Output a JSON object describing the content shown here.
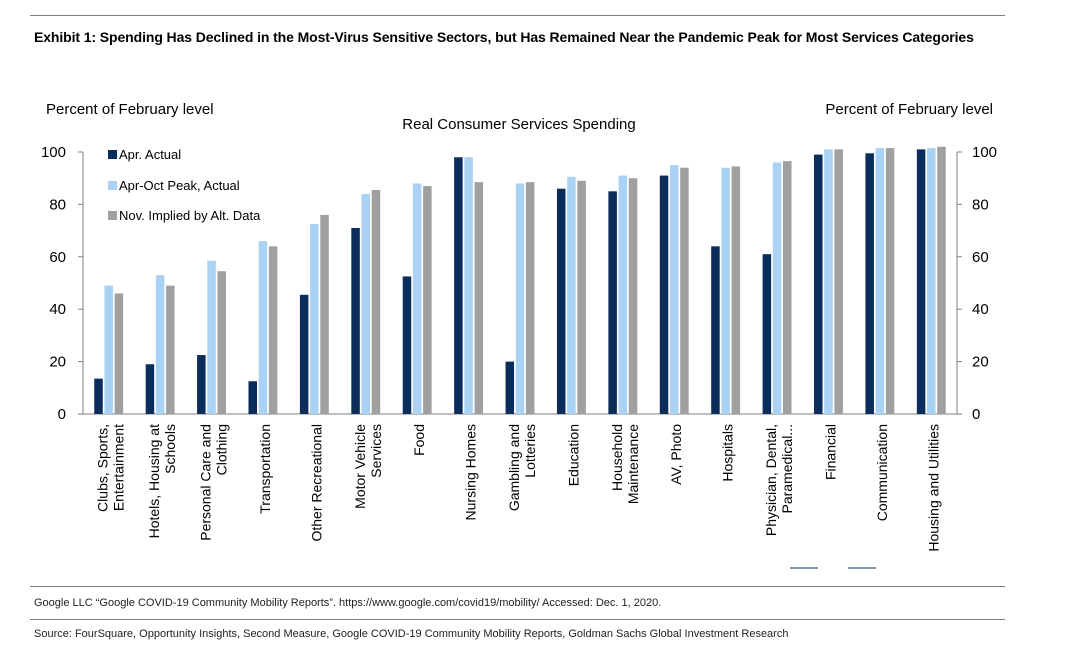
{
  "header": {
    "title": "Exhibit 1: Spending Has Declined in the Most-Virus Sensitive Sectors, but Has Remained Near the Pandemic Peak for Most Services Categories"
  },
  "footer": {
    "footnote": "Google LLC “Google COVID-19 Community Mobility Reports”. https://www.google.com/covid19/mobility/ Accessed: Dec. 1, 2020.",
    "source": "Source: FourSquare, Opportunity Insights, Second Measure, Google COVID-19 Community Mobility Reports, Goldman Sachs Global Investment Research"
  },
  "chart_data": {
    "type": "bar",
    "title": "Real Consumer Services Spending",
    "ylabel": "Percent of February level",
    "y2label": "Percent of February level",
    "ylim": [
      0,
      100
    ],
    "yticks": [
      0,
      20,
      40,
      60,
      80,
      100
    ],
    "grid": false,
    "legend_position": "top-left",
    "categories": [
      [
        "Clubs, Sports,",
        "Entertainment"
      ],
      [
        "Hotels, Housing at",
        "Schools"
      ],
      [
        "Personal Care and",
        "Clothing"
      ],
      [
        "Transportation"
      ],
      [
        "Other Recreational"
      ],
      [
        "Motor Vehicle",
        "Services"
      ],
      [
        "Food"
      ],
      [
        "Nursing Homes"
      ],
      [
        "Gambling and",
        "Lotteries"
      ],
      [
        "Education"
      ],
      [
        "Household",
        "Maintenance"
      ],
      [
        "AV, Photo"
      ],
      [
        "Hospitals"
      ],
      [
        "Physician, Dental,",
        "Paramedical..."
      ],
      [
        "Financial"
      ],
      [
        "Communication"
      ],
      [
        "Housing and Utilities"
      ]
    ],
    "series": [
      {
        "name": "Apr. Actual",
        "color": "#0b2d5b",
        "values": [
          13.5,
          19,
          22.5,
          12.5,
          45.5,
          71,
          52.5,
          98,
          20,
          86,
          85,
          91,
          64,
          61,
          99,
          99.5,
          101
        ]
      },
      {
        "name": "Apr-Oct Peak, Actual",
        "color": "#a9d2f4",
        "values": [
          49,
          53,
          58.5,
          66,
          72.5,
          84,
          88,
          98,
          88,
          90.5,
          91,
          95,
          94,
          96,
          101,
          101.5,
          101.5
        ]
      },
      {
        "name": "Nov. Implied by Alt. Data",
        "color": "#a0a0a0",
        "values": [
          46,
          49,
          54.5,
          64,
          76,
          85.5,
          87,
          88.5,
          88.5,
          89,
          90,
          94,
          94.5,
          96.5,
          101,
          101.5,
          102
        ]
      }
    ]
  }
}
